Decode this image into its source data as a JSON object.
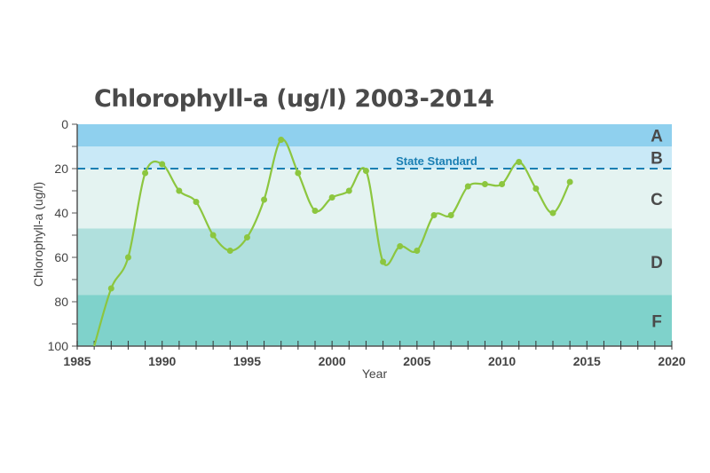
{
  "chart_data": {
    "type": "line",
    "title": "Chlorophyll-a (ug/l) 2003-2014",
    "xlabel": "Year",
    "ylabel": "Chlorophyll-a (ug/l)",
    "xlim": [
      1985,
      2020
    ],
    "ylim": [
      0,
      100
    ],
    "y_inverted": true,
    "x_ticks": [
      1985,
      1990,
      1995,
      2000,
      2005,
      2010,
      2015,
      2020
    ],
    "y_ticks": [
      0,
      20,
      40,
      60,
      80,
      100
    ],
    "grade_bands": [
      {
        "label": "A",
        "from": 0,
        "to": 10,
        "color": "#8fd0ee"
      },
      {
        "label": "B",
        "from": 10,
        "to": 20,
        "color": "#c9e9f7"
      },
      {
        "label": "C",
        "from": 20,
        "to": 47,
        "color": "#e4f3f1"
      },
      {
        "label": "D",
        "from": 47,
        "to": 77,
        "color": "#b0e0dd"
      },
      {
        "label": "F",
        "from": 77,
        "to": 100,
        "color": "#7fd2cb"
      }
    ],
    "reference_line": {
      "label": "State Standard",
      "value": 20,
      "color": "#1a7fb3"
    },
    "series": [
      {
        "name": "Chlorophyll-a",
        "color": "#8cc63f",
        "x": [
          1986,
          1987,
          1988,
          1989,
          1990,
          1991,
          1992,
          1993,
          1994,
          1995,
          1996,
          1997,
          1998,
          1999,
          2000,
          2001,
          2002,
          2003,
          2004,
          2005,
          2006,
          2007,
          2008,
          2009,
          2010,
          2011,
          2012,
          2013,
          2014
        ],
        "y": [
          100,
          74,
          60,
          22,
          18,
          30,
          35,
          50,
          57,
          51,
          34,
          7,
          22,
          39,
          33,
          30,
          21,
          62,
          55,
          57,
          41,
          41,
          28,
          27,
          27,
          17,
          29,
          40,
          26
        ]
      }
    ]
  }
}
